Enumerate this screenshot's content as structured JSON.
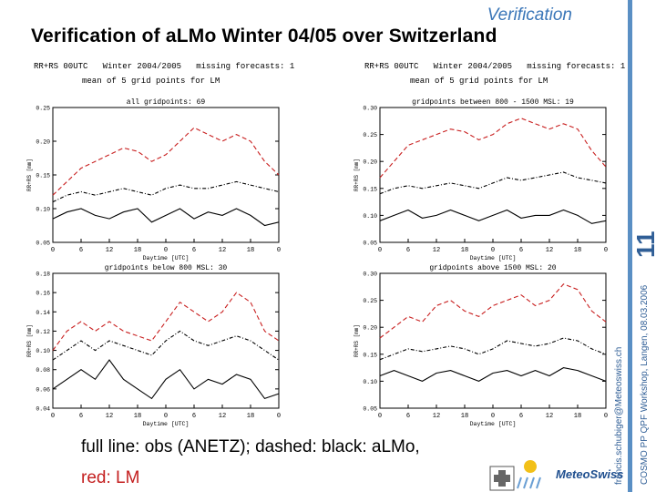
{
  "slide": {
    "section_title": "Verification",
    "title": "Verification of aLMo Winter 04/05 over Switzerland",
    "slide_number": "11",
    "side_email": "francis.schubiger@Meteoswiss.ch",
    "side_event": "COSMO PP QPF Workshop, Langen, 08.03.2006",
    "caption_line1": "full line: obs (ANETZ); dashed: black: aLMo,",
    "caption_line2": "red: LM",
    "logo_text": "MeteoSwiss"
  },
  "header": {
    "left_line1": "RR+RS 00UTC   Winter 2004/2005   missing forecasts: 1",
    "left_line2": "mean of 5 grid points for LM",
    "right_line1": "RR+RS 00UTC   Winter 2004/2005   missing forecasts: 1",
    "right_line2": "mean of 5 grid points for LM"
  },
  "colors": {
    "obs": "#000000",
    "almo": "#000000",
    "lm": "#c81e1e",
    "accent": "#3a76b8"
  },
  "chart_data": [
    {
      "type": "line",
      "title": "all gridpoints: 69",
      "xlabel": "Daytime [UTC]",
      "ylabel": "RR+RS [mm]",
      "x_tick_labels": [
        "0",
        "6",
        "12",
        "18",
        "0",
        "6",
        "12",
        "18",
        "0"
      ],
      "xlim": [
        0,
        48
      ],
      "ylim": [
        0.05,
        0.25
      ],
      "y_ticks": [
        0.05,
        0.1,
        0.15,
        0.2,
        0.25
      ],
      "y_tick_labels": [
        "0.05",
        "0.10",
        "0.15",
        "0.20",
        "0.25"
      ],
      "x": [
        0,
        3,
        6,
        9,
        12,
        15,
        18,
        21,
        24,
        27,
        30,
        33,
        36,
        39,
        42,
        45,
        48
      ],
      "series": [
        {
          "name": "obs (ANETZ)",
          "style": "solid",
          "values": [
            0.085,
            0.095,
            0.1,
            0.09,
            0.085,
            0.095,
            0.1,
            0.08,
            0.09,
            0.1,
            0.085,
            0.095,
            0.09,
            0.1,
            0.09,
            0.075,
            0.08
          ]
        },
        {
          "name": "aLMo",
          "style": "dashed",
          "values": [
            0.11,
            0.12,
            0.125,
            0.12,
            0.125,
            0.13,
            0.125,
            0.12,
            0.13,
            0.135,
            0.13,
            0.13,
            0.135,
            0.14,
            0.135,
            0.13,
            0.125
          ]
        },
        {
          "name": "LM",
          "style": "dashed-red",
          "values": [
            0.12,
            0.14,
            0.16,
            0.17,
            0.18,
            0.19,
            0.185,
            0.17,
            0.18,
            0.2,
            0.22,
            0.21,
            0.2,
            0.21,
            0.2,
            0.17,
            0.15
          ]
        }
      ]
    },
    {
      "type": "line",
      "title": "gridpoints between 800 - 1500 MSL: 19",
      "xlabel": "Daytime [UTC]",
      "ylabel": "RR+RS [mm]",
      "x_tick_labels": [
        "0",
        "6",
        "12",
        "18",
        "0",
        "6",
        "12",
        "18",
        "0"
      ],
      "xlim": [
        0,
        48
      ],
      "ylim": [
        0.05,
        0.3
      ],
      "y_ticks": [
        0.05,
        0.1,
        0.15,
        0.2,
        0.25,
        0.3
      ],
      "y_tick_labels": [
        "0.05",
        "0.10",
        "0.15",
        "0.20",
        "0.25",
        "0.30"
      ],
      "x": [
        0,
        3,
        6,
        9,
        12,
        15,
        18,
        21,
        24,
        27,
        30,
        33,
        36,
        39,
        42,
        45,
        48
      ],
      "series": [
        {
          "name": "obs (ANETZ)",
          "style": "solid",
          "values": [
            0.09,
            0.1,
            0.11,
            0.095,
            0.1,
            0.11,
            0.1,
            0.09,
            0.1,
            0.11,
            0.095,
            0.1,
            0.1,
            0.11,
            0.1,
            0.085,
            0.09
          ]
        },
        {
          "name": "aLMo",
          "style": "dashed",
          "values": [
            0.14,
            0.15,
            0.155,
            0.15,
            0.155,
            0.16,
            0.155,
            0.15,
            0.16,
            0.17,
            0.165,
            0.17,
            0.175,
            0.18,
            0.17,
            0.165,
            0.16
          ]
        },
        {
          "name": "LM",
          "style": "dashed-red",
          "values": [
            0.17,
            0.2,
            0.23,
            0.24,
            0.25,
            0.26,
            0.255,
            0.24,
            0.25,
            0.27,
            0.28,
            0.27,
            0.26,
            0.27,
            0.26,
            0.22,
            0.19
          ]
        }
      ]
    },
    {
      "type": "line",
      "title": "gridpoints below 800 MSL: 30",
      "xlabel": "Daytime [UTC]",
      "ylabel": "RR+RS [mm]",
      "x_tick_labels": [
        "0",
        "6",
        "12",
        "18",
        "0",
        "6",
        "12",
        "18",
        "0"
      ],
      "xlim": [
        0,
        48
      ],
      "ylim": [
        0.04,
        0.18
      ],
      "y_ticks": [
        0.04,
        0.06,
        0.08,
        0.1,
        0.12,
        0.14,
        0.16,
        0.18
      ],
      "y_tick_labels": [
        "0.04",
        "0.06",
        "0.08",
        "0.10",
        "0.12",
        "0.14",
        "0.16",
        "0.18"
      ],
      "x": [
        0,
        3,
        6,
        9,
        12,
        15,
        18,
        21,
        24,
        27,
        30,
        33,
        36,
        39,
        42,
        45,
        48
      ],
      "series": [
        {
          "name": "obs (ANETZ)",
          "style": "solid",
          "values": [
            0.06,
            0.07,
            0.08,
            0.07,
            0.09,
            0.07,
            0.06,
            0.05,
            0.07,
            0.08,
            0.06,
            0.07,
            0.065,
            0.075,
            0.07,
            0.05,
            0.055
          ]
        },
        {
          "name": "aLMo",
          "style": "dashed",
          "values": [
            0.09,
            0.1,
            0.11,
            0.1,
            0.11,
            0.105,
            0.1,
            0.095,
            0.11,
            0.12,
            0.11,
            0.105,
            0.11,
            0.115,
            0.11,
            0.1,
            0.09
          ]
        },
        {
          "name": "LM",
          "style": "dashed-red",
          "values": [
            0.1,
            0.12,
            0.13,
            0.12,
            0.13,
            0.12,
            0.115,
            0.11,
            0.13,
            0.15,
            0.14,
            0.13,
            0.14,
            0.16,
            0.15,
            0.12,
            0.11
          ]
        }
      ]
    },
    {
      "type": "line",
      "title": "gridpoints above 1500 MSL: 20",
      "xlabel": "Daytime [UTC]",
      "ylabel": "RR+RS [mm]",
      "x_tick_labels": [
        "0",
        "6",
        "12",
        "18",
        "0",
        "6",
        "12",
        "18",
        "0"
      ],
      "xlim": [
        0,
        48
      ],
      "ylim": [
        0.05,
        0.3
      ],
      "y_ticks": [
        0.05,
        0.1,
        0.15,
        0.2,
        0.25,
        0.3
      ],
      "y_tick_labels": [
        "0.05",
        "0.10",
        "0.15",
        "0.20",
        "0.25",
        "0.30"
      ],
      "x": [
        0,
        3,
        6,
        9,
        12,
        15,
        18,
        21,
        24,
        27,
        30,
        33,
        36,
        39,
        42,
        45,
        48
      ],
      "series": [
        {
          "name": "obs (ANETZ)",
          "style": "solid",
          "values": [
            0.11,
            0.12,
            0.11,
            0.1,
            0.115,
            0.12,
            0.11,
            0.1,
            0.115,
            0.12,
            0.11,
            0.12,
            0.11,
            0.125,
            0.12,
            0.11,
            0.1
          ]
        },
        {
          "name": "aLMo",
          "style": "dashed",
          "values": [
            0.14,
            0.15,
            0.16,
            0.155,
            0.16,
            0.165,
            0.16,
            0.15,
            0.16,
            0.175,
            0.17,
            0.165,
            0.17,
            0.18,
            0.175,
            0.16,
            0.15
          ]
        },
        {
          "name": "LM",
          "style": "dashed-red",
          "values": [
            0.18,
            0.2,
            0.22,
            0.21,
            0.24,
            0.25,
            0.23,
            0.22,
            0.24,
            0.25,
            0.26,
            0.24,
            0.25,
            0.28,
            0.27,
            0.23,
            0.21
          ]
        }
      ]
    }
  ]
}
